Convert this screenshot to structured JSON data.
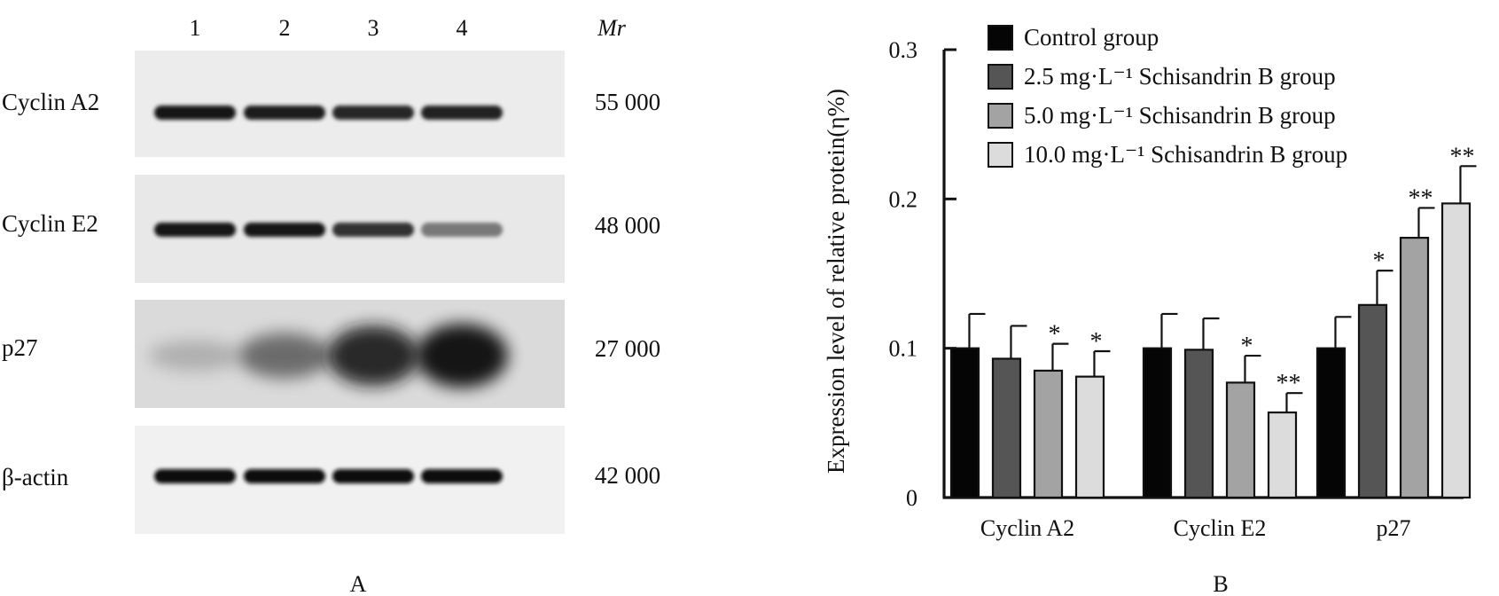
{
  "panel_a": {
    "lane_labels": [
      "1",
      "2",
      "3",
      "4"
    ],
    "mr_label": "Mr",
    "blots": [
      {
        "protein": "Cyclin A2",
        "mr": "55 000",
        "band_intensity": [
          0.92,
          0.9,
          0.86,
          0.88
        ],
        "smear": false
      },
      {
        "protein": "Cyclin E2",
        "mr": "48 000",
        "band_intensity": [
          0.94,
          0.92,
          0.8,
          0.5
        ],
        "smear": false
      },
      {
        "protein": "p27",
        "mr": "27 000",
        "band_intensity": [
          0.28,
          0.6,
          0.92,
          1.0
        ],
        "smear": true
      },
      {
        "protein": "β-actin",
        "mr": "42 000",
        "band_intensity": [
          0.95,
          0.95,
          0.95,
          0.95
        ],
        "smear": false
      }
    ],
    "panel_label": "A"
  },
  "chart_data": {
    "type": "bar",
    "ylabel": "Expression level of relative protein(η%)",
    "ylim": [
      0,
      0.3
    ],
    "yticks": [
      "0",
      "0.1",
      "0.2",
      "0.3"
    ],
    "categories": [
      "Cyclin A2",
      "Cyclin E2",
      "p27"
    ],
    "series": [
      {
        "name": "Control group",
        "color": "#050505",
        "values": [
          0.1,
          0.1,
          0.1
        ],
        "errors": [
          0.023,
          0.023,
          0.021
        ],
        "sig": [
          "",
          "",
          ""
        ]
      },
      {
        "name": "2.5 mg·L⁻¹ Schisandrin B group",
        "color": "#555555",
        "values": [
          0.093,
          0.099,
          0.129
        ],
        "errors": [
          0.022,
          0.021,
          0.023
        ],
        "sig": [
          "",
          "",
          "*"
        ]
      },
      {
        "name": "5.0 mg·L⁻¹ Schisandrin B group",
        "color": "#a3a3a3",
        "values": [
          0.085,
          0.077,
          0.174
        ],
        "errors": [
          0.018,
          0.018,
          0.02
        ],
        "sig": [
          "*",
          "*",
          "**"
        ]
      },
      {
        "name": "10.0 mg·L⁻¹ Schisandrin B group",
        "color": "#dcdcdc",
        "values": [
          0.081,
          0.057,
          0.197
        ],
        "errors": [
          0.017,
          0.013,
          0.025
        ],
        "sig": [
          "*",
          "**",
          "**"
        ]
      }
    ],
    "legend_position": "top",
    "panel_label": "B"
  }
}
